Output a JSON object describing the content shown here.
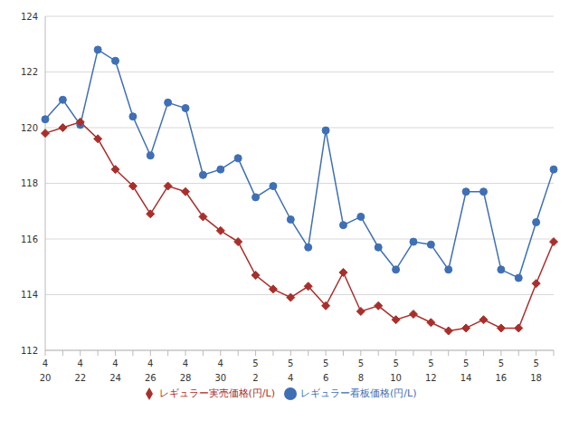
{
  "chart_data": {
    "type": "line",
    "categories": [
      [
        "4",
        "20"
      ],
      null,
      [
        "4",
        "22"
      ],
      null,
      [
        "4",
        "24"
      ],
      null,
      [
        "4",
        "26"
      ],
      null,
      [
        "4",
        "28"
      ],
      null,
      [
        "4",
        "30"
      ],
      null,
      [
        "5",
        "2"
      ],
      null,
      [
        "5",
        "4"
      ],
      null,
      [
        "5",
        "6"
      ],
      null,
      [
        "5",
        "8"
      ],
      null,
      [
        "5",
        "10"
      ],
      null,
      [
        "5",
        "12"
      ],
      null,
      [
        "5",
        "14"
      ],
      null,
      [
        "5",
        "16"
      ],
      null,
      [
        "5",
        "18"
      ],
      null
    ],
    "series": [
      {
        "name": "レギュラー看板価格(円/L)",
        "color": "#3f6fb5",
        "marker": "circle",
        "values": [
          120.3,
          121.0,
          120.1,
          122.8,
          122.4,
          120.4,
          119.0,
          120.9,
          120.7,
          118.3,
          118.5,
          118.9,
          117.5,
          117.9,
          116.7,
          115.7,
          119.9,
          116.5,
          116.8,
          115.7,
          114.9,
          115.9,
          115.8,
          114.9,
          117.7,
          117.7,
          114.9,
          114.6,
          116.6,
          118.5
        ]
      },
      {
        "name": "レギュラー実売価格(円/L)",
        "color": "#a8302c",
        "marker": "diamond",
        "values": [
          119.8,
          120.0,
          120.2,
          119.6,
          118.5,
          117.9,
          116.9,
          117.9,
          117.7,
          116.8,
          116.3,
          115.9,
          114.7,
          114.2,
          113.9,
          114.3,
          113.6,
          114.8,
          113.4,
          113.6,
          113.1,
          113.3,
          113.0,
          112.7,
          112.8,
          113.1,
          112.8,
          112.8,
          114.4,
          115.9
        ]
      }
    ],
    "ylim": [
      112,
      124
    ],
    "yticks": [
      112,
      114,
      116,
      118,
      120,
      122,
      124
    ],
    "grid": true,
    "legend": "bottom"
  }
}
